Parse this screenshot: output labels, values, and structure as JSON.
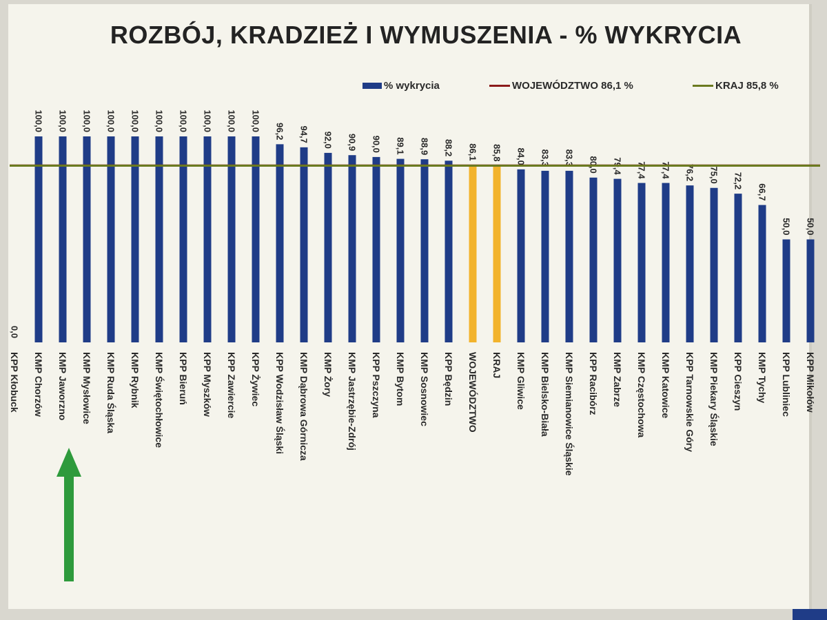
{
  "chart_data": {
    "type": "bar",
    "title": "ROZBÓJ, KRADZIEŻ I WYMUSZENIA - % WYKRYCIA",
    "legend": [
      {
        "label": "% wykrycia",
        "color": "#1f3c87",
        "kind": "bar"
      },
      {
        "label": "WOJEWÓDZTWO 86,1 %",
        "color": "#8b1a1a",
        "kind": "line"
      },
      {
        "label": "KRAJ 85,8 %",
        "color": "#6b7a1f",
        "kind": "line"
      }
    ],
    "categories": [
      "KPP Kłobuck",
      "KMP Chorzów",
      "KMP Jaworzno",
      "KMP Mysłowice",
      "KMP Ruda Śląska",
      "KMP Rybnik",
      "KMP Świętochłowice",
      "KPP Bieruń",
      "KPP Myszków",
      "KPP Zawiercie",
      "KPP Żywiec",
      "KPP Wodzisław Śląski",
      "KMP Dąbrowa Górnicza",
      "KMP Żory",
      "KMP Jastrzębie-Zdrój",
      "KPP Pszczyna",
      "KMP Bytom",
      "KMP Sosnowiec",
      "KPP Będzin",
      "WOJEWÓDZTWO",
      "KRAJ",
      "KMP Gliwice",
      "KMP Bielsko-Biała",
      "KMP Siemianowice Śląskie",
      "KPP Racibórz",
      "KMP Zabrze",
      "KMP Częstochowa",
      "KMP Katowice",
      "KPP Tarnowskie Góry",
      "KMP Piekary Śląskie",
      "KPP Cieszyn",
      "KMP Tychy",
      "KPP Lubliniec",
      "KPP Mikołów"
    ],
    "values": [
      0.0,
      100.0,
      100.0,
      100.0,
      100.0,
      100.0,
      100.0,
      100.0,
      100.0,
      100.0,
      100.0,
      96.2,
      94.7,
      92.0,
      90.9,
      90.0,
      89.1,
      88.9,
      88.2,
      86.1,
      85.8,
      84.0,
      83.3,
      83.3,
      80.0,
      79.4,
      77.4,
      77.4,
      76.2,
      75.0,
      72.2,
      66.7,
      50.0,
      50.0
    ],
    "value_labels": [
      "0,0",
      "100,0",
      "100,0",
      "100,0",
      "100,0",
      "100,0",
      "100,0",
      "100,0",
      "100,0",
      "100,0",
      "100,0",
      "96,2",
      "94,7",
      "92,0",
      "90,9",
      "90,0",
      "89,1",
      "88,9",
      "88,2",
      "86,1",
      "85,8",
      "84,0",
      "83,3",
      "83,3",
      "80,0",
      "79,4",
      "77,4",
      "77,4",
      "76,2",
      "75,0",
      "72,2",
      "66,7",
      "50,0",
      "50,0"
    ],
    "highlighted_categories": [
      "WOJEWÓDZTWO",
      "KRAJ"
    ],
    "colors": {
      "bar": "#1f3c87",
      "highlight": "#f2b32c",
      "woj_line": "#8b1a1a",
      "kraj_line": "#6b7a1f",
      "arrow": "#2e9a3c"
    },
    "reference_lines": [
      {
        "name": "WOJEWÓDZTWO",
        "value": 86.1
      },
      {
        "name": "KRAJ",
        "value": 85.8
      }
    ],
    "ylim": [
      0,
      100
    ],
    "grid": false,
    "legend_position": "top-right",
    "annotation": {
      "kind": "arrow",
      "icon": "green-up-arrow",
      "points_to": "KMP Jaworzno"
    }
  }
}
